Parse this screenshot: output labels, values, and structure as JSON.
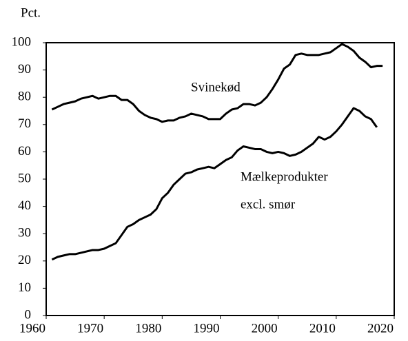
{
  "chart_data": {
    "type": "line",
    "y_label": "Pct.",
    "xlim": [
      1960,
      2020
    ],
    "xticks": [
      1960,
      1970,
      1980,
      1990,
      2000,
      2010,
      2020
    ],
    "ylim": [
      0,
      100
    ],
    "yticks": [
      0,
      10,
      20,
      30,
      40,
      50,
      60,
      70,
      80,
      90,
      100
    ],
    "grid": false,
    "series": [
      {
        "name": "Svinekød",
        "color": "#000000",
        "x": [
          1961,
          1962,
          1963,
          1964,
          1965,
          1966,
          1967,
          1968,
          1969,
          1970,
          1971,
          1972,
          1973,
          1974,
          1975,
          1976,
          1977,
          1978,
          1979,
          1980,
          1981,
          1982,
          1983,
          1984,
          1985,
          1986,
          1987,
          1988,
          1989,
          1990,
          1991,
          1992,
          1993,
          1994,
          1995,
          1996,
          1997,
          1998,
          1999,
          2000,
          2001,
          2002,
          2003,
          2004,
          2005,
          2006,
          2007,
          2008,
          2009,
          2010,
          2011,
          2012,
          2013,
          2014,
          2015,
          2016,
          2017,
          2018
        ],
        "values": [
          75.5,
          76.5,
          77.5,
          78,
          78.5,
          79.5,
          80,
          80.5,
          79.5,
          80,
          80.5,
          80.5,
          79,
          79,
          77.5,
          75,
          73.5,
          72.5,
          72,
          71,
          71.5,
          71.5,
          72.5,
          73,
          74,
          73.5,
          73,
          72,
          72,
          72,
          74,
          75.5,
          76,
          77.5,
          77.5,
          77,
          78,
          80,
          83,
          86.5,
          90.5,
          92,
          95.5,
          96,
          95.5,
          95.5,
          95.5,
          96,
          96.5,
          98,
          99.5,
          98.5,
          97,
          94.5,
          93,
          91,
          91.5,
          91.5
        ]
      },
      {
        "name": "Mælkeprodukter excl. smør",
        "name_lines": [
          "Mælkeprodukter",
          "excl. smør"
        ],
        "color": "#000000",
        "x": [
          1961,
          1962,
          1963,
          1964,
          1965,
          1966,
          1967,
          1968,
          1969,
          1970,
          1971,
          1972,
          1973,
          1974,
          1975,
          1976,
          1977,
          1978,
          1979,
          1980,
          1981,
          1982,
          1983,
          1984,
          1985,
          1986,
          1987,
          1988,
          1989,
          1990,
          1991,
          1992,
          1993,
          1994,
          1995,
          1996,
          1997,
          1998,
          1999,
          2000,
          2001,
          2002,
          2003,
          2004,
          2005,
          2006,
          2007,
          2008,
          2009,
          2010,
          2011,
          2012,
          2013,
          2014,
          2015,
          2016,
          2017
        ],
        "values": [
          20.5,
          21.5,
          22,
          22.5,
          22.5,
          23,
          23.5,
          24,
          24,
          24.5,
          25.5,
          26.5,
          29.5,
          32.5,
          33.5,
          35,
          36,
          37,
          39,
          43,
          45,
          48,
          50,
          52,
          52.5,
          53.5,
          54,
          54.5,
          54,
          55.5,
          57,
          58,
          60.5,
          62,
          61.5,
          61,
          61,
          60,
          59.5,
          60,
          59.5,
          58.5,
          59,
          60,
          61.5,
          63,
          65.5,
          64.5,
          65.5,
          67.5,
          70,
          73,
          76,
          75,
          73,
          72,
          69
        ]
      }
    ]
  }
}
